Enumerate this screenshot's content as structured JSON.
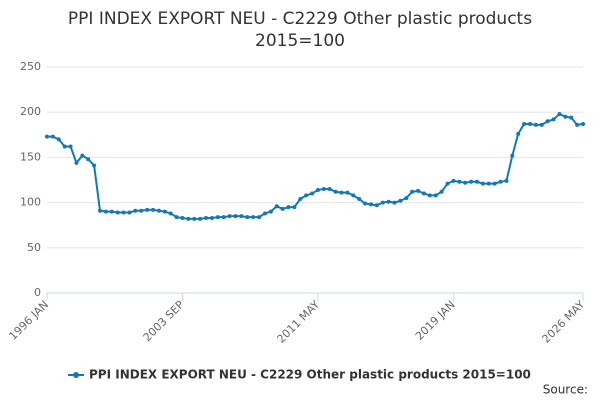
{
  "chart_data": {
    "type": "line",
    "title": [
      "PPI INDEX EXPORT NEU - C2229 Other plastic products",
      "2015=100"
    ],
    "categories": [
      "1996 JAN",
      null,
      null,
      null,
      null,
      null,
      null,
      null,
      null,
      null,
      null,
      null,
      null,
      null,
      null,
      null,
      null,
      null,
      null,
      null,
      null,
      null,
      null,
      "2003 SEP",
      null,
      null,
      null,
      null,
      null,
      null,
      null,
      null,
      null,
      null,
      null,
      null,
      null,
      null,
      null,
      null,
      null,
      null,
      null,
      null,
      null,
      null,
      "2011 MAY",
      null,
      null,
      null,
      null,
      null,
      null,
      null,
      null,
      null,
      null,
      null,
      null,
      null,
      null,
      null,
      null,
      null,
      null,
      null,
      null,
      null,
      null,
      "2019 JAN",
      null,
      null,
      null,
      null,
      null,
      null,
      null,
      null,
      null,
      null,
      null,
      null,
      null,
      null,
      null,
      null,
      null,
      null,
      null,
      null,
      null,
      "2026 MAY"
    ],
    "series": [
      {
        "name": "PPI INDEX EXPORT NEU - C2229 Other plastic products 2015=100",
        "color": "#1478b8",
        "values": [
          173,
          173,
          170,
          162,
          162,
          144,
          152,
          148,
          141,
          91,
          90,
          90,
          89,
          89,
          89,
          91,
          91,
          92,
          92,
          91,
          90,
          88,
          84,
          83,
          82,
          82,
          82,
          83,
          83,
          84,
          84,
          85,
          85,
          85,
          84,
          84,
          84,
          88,
          90,
          96,
          93,
          95,
          95,
          104,
          108,
          110,
          114,
          115,
          115,
          112,
          111,
          111,
          108,
          104,
          99,
          98,
          97,
          100,
          101,
          100,
          102,
          105,
          112,
          113,
          110,
          108,
          108,
          112,
          121,
          124,
          123,
          122,
          123,
          123,
          121,
          121,
          121,
          123,
          124,
          152,
          176,
          187,
          187,
          186,
          186,
          190,
          192,
          198,
          195,
          194,
          186,
          187
        ]
      }
    ],
    "ylim": [
      0,
      250
    ],
    "yticks": [
      0,
      50,
      100,
      150,
      200,
      250
    ],
    "grid": true,
    "legend": "bottom",
    "source": "Source:"
  }
}
